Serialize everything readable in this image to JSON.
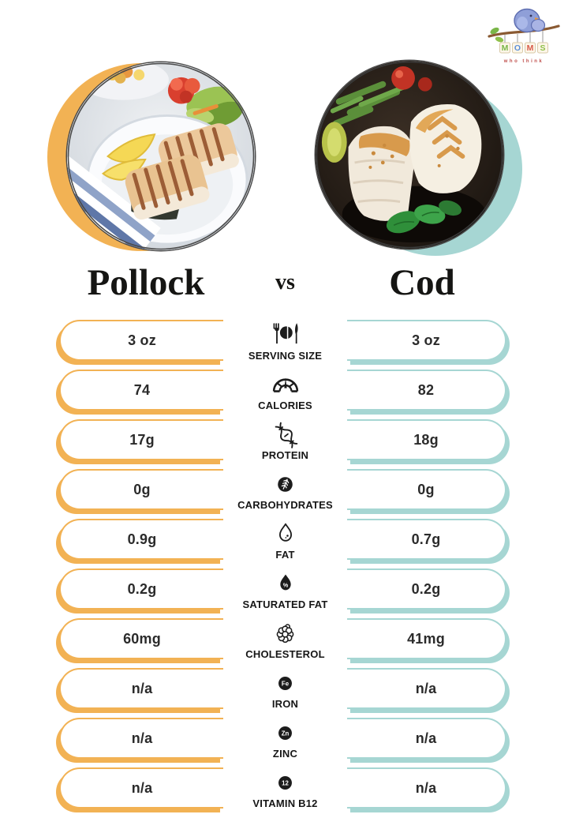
{
  "logo": {
    "brand_letters": [
      "M",
      "O",
      "M",
      "S"
    ],
    "tagline": "who think"
  },
  "title": {
    "left": "Pollock",
    "vs": "vs",
    "right": "Cod"
  },
  "colors": {
    "left_accent": "#F2B254",
    "right_accent": "#A6D6D3",
    "text": "#1d1d1b"
  },
  "photos": {
    "left_alt": "pollock-plate-photo",
    "right_alt": "cod-plate-photo"
  },
  "rows": [
    {
      "label": "SERVING SIZE",
      "icon": "place-setting-icon",
      "left": "3 oz",
      "right": "3 oz"
    },
    {
      "label": "CALORIES",
      "icon": "gauge-icon",
      "left": "74",
      "right": "82"
    },
    {
      "label": "PROTEIN",
      "icon": "dna-icon",
      "left": "17g",
      "right": "18g"
    },
    {
      "label": "CARBOHYDRATES",
      "icon": "wheat-icon",
      "left": "0g",
      "right": "0g"
    },
    {
      "label": "FAT",
      "icon": "droplet-icon",
      "left": "0.9g",
      "right": "0.7g"
    },
    {
      "label": "SATURATED FAT",
      "icon": "droplet-percent-icon",
      "left": "0.2g",
      "right": "0.2g",
      "badge": "%"
    },
    {
      "label": "CHOLESTEROL",
      "icon": "molecule-icon",
      "left": "60mg",
      "right": "41mg"
    },
    {
      "label": "IRON",
      "icon": "fe-badge-icon",
      "left": "n/a",
      "right": "n/a",
      "badge": "Fe"
    },
    {
      "label": "ZINC",
      "icon": "zn-badge-icon",
      "left": "n/a",
      "right": "n/a",
      "badge": "Zn"
    },
    {
      "label": "VITAMIN B12",
      "icon": "b12-badge-icon",
      "left": "n/a",
      "right": "n/a",
      "badge": "12"
    }
  ]
}
